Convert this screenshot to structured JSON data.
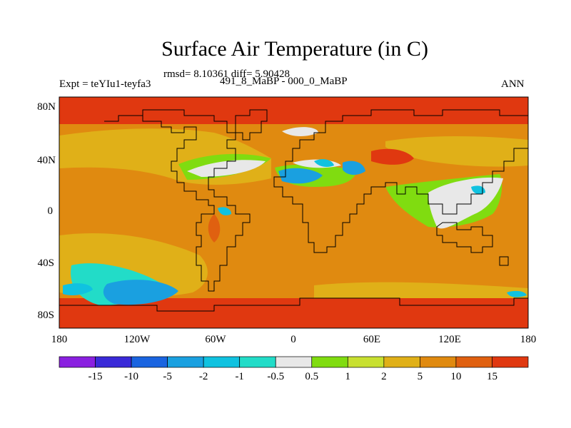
{
  "header": {
    "title": "Surface Air Temperature (in C)",
    "stats": "rmsd= 8.10361 diff= 5.90428",
    "experiment": "Expt = teYIu1-teyfa3",
    "difference_case": "491_8_MaBP - 000_0_MaBP",
    "season": "ANN"
  },
  "axes": {
    "lon_ticks": [
      "180",
      "120W",
      "60W",
      "0",
      "60E",
      "120E",
      "180"
    ],
    "lat_ticks": [
      "80N",
      "40N",
      "0",
      "40S",
      "80S"
    ]
  },
  "colorbar": {
    "labels": [
      "-15",
      "-10",
      "-5",
      "-2",
      "-1",
      "-0.5",
      "0.5",
      "1",
      "2",
      "5",
      "10",
      "15"
    ],
    "colors": [
      "#8a20e0",
      "#3a2ad8",
      "#1a64e0",
      "#1aa0e0",
      "#10c2e0",
      "#22dcc8",
      "#e8e8e8",
      "#80dc10",
      "#c8e030",
      "#e0b018",
      "#e08a10",
      "#e06010",
      "#e03810"
    ]
  },
  "palette": {
    "ocean_base": "#e08a10",
    "polar_hot": "#e03810",
    "warm": "#e06010",
    "yellow_orange": "#e0b018",
    "yellow_green": "#c8e030",
    "green": "#80dc10",
    "white": "#e8e8e8",
    "cyan": "#22dcc8",
    "light_blue": "#10c2e0",
    "blue": "#1aa0e0",
    "coastline": "#000000"
  }
}
